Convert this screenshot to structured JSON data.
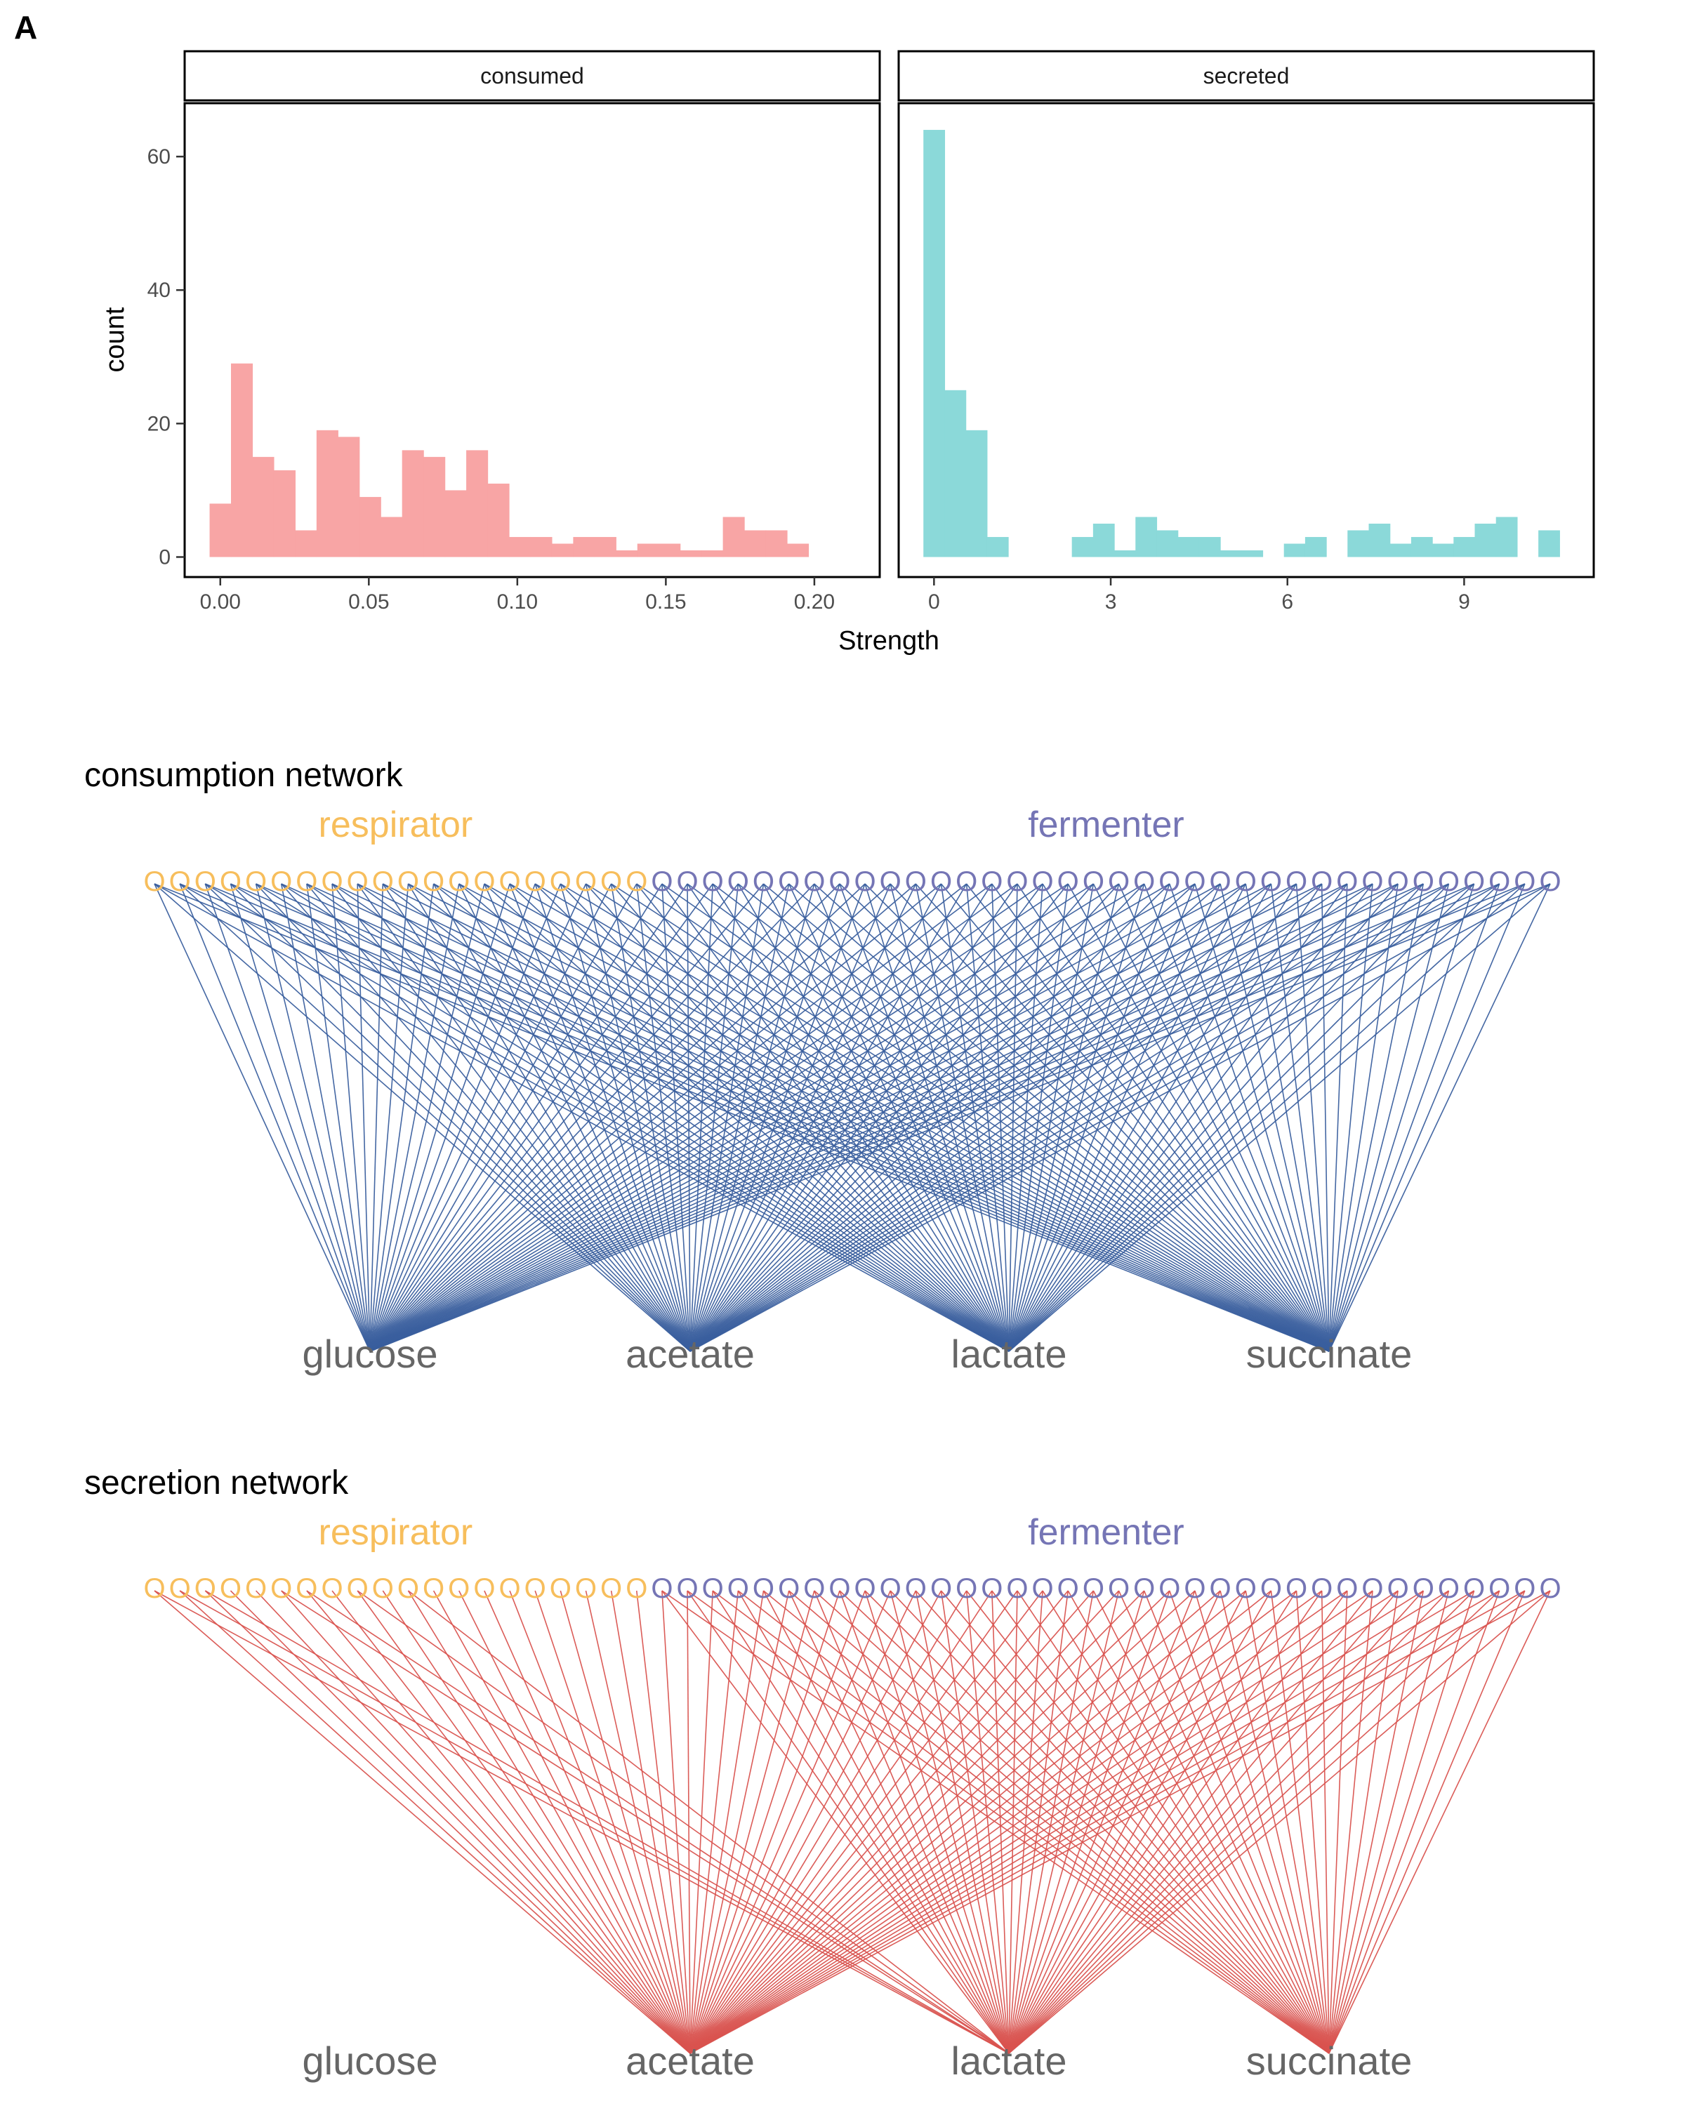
{
  "panel_label": "A",
  "chart_data": [
    {
      "type": "bar",
      "chart_kind": "histogram",
      "facet": "consumed",
      "xlabel": "Strength",
      "ylabel": "count",
      "color": "#F8A5A5",
      "xlim": [
        -0.012,
        0.222
      ],
      "ylim": [
        -3,
        68
      ],
      "x_ticks": [
        "0.00",
        "0.05",
        "0.10",
        "0.15",
        "0.20"
      ],
      "x_tick_values": [
        0,
        0.05,
        0.1,
        0.15,
        0.2
      ],
      "y_ticks": [
        "0",
        "20",
        "40",
        "60"
      ],
      "y_tick_values": [
        0,
        20,
        40,
        60
      ],
      "bin_width": 0.0072,
      "bin_start": -0.0036,
      "values": [
        8,
        29,
        15,
        13,
        4,
        19,
        18,
        9,
        6,
        16,
        15,
        10,
        16,
        11,
        3,
        3,
        2,
        3,
        3,
        1,
        2,
        2,
        1,
        1,
        6,
        4,
        4,
        2
      ]
    },
    {
      "type": "bar",
      "chart_kind": "histogram",
      "facet": "secreted",
      "xlabel": "Strength",
      "ylabel": "count",
      "color": "#8BD9D9",
      "xlim": [
        -0.6,
        11.2
      ],
      "ylim": [
        -3,
        68
      ],
      "x_ticks": [
        "0",
        "3",
        "6",
        "9"
      ],
      "x_tick_values": [
        0,
        3,
        6,
        9
      ],
      "y_ticks": [
        "0",
        "20",
        "40",
        "60"
      ],
      "y_tick_values": [
        0,
        20,
        40,
        60
      ],
      "bin_width": 0.36,
      "bin_start": -0.18,
      "values": [
        64,
        25,
        19,
        3,
        0,
        0,
        0,
        3,
        5,
        1,
        6,
        4,
        3,
        3,
        1,
        1,
        0,
        2,
        3,
        0,
        4,
        5,
        2,
        3,
        2,
        3,
        5,
        6,
        0,
        4
      ]
    },
    {
      "type": "network",
      "title": "consumption network",
      "edge_color": "#3A5F9E",
      "groups": [
        {
          "name": "respirator",
          "color": "#F7BE5C",
          "count": 20
        },
        {
          "name": "fermenter",
          "color": "#7575B5",
          "count": 36
        }
      ],
      "node_glyph": "O",
      "metabolites": [
        "glucose",
        "acetate",
        "lactate",
        "succinate"
      ],
      "edges": {
        "respirator": {
          "glucose": "all",
          "acetate": "all",
          "lactate": "all",
          "succinate": "all"
        },
        "fermenter": {
          "glucose": "all",
          "acetate": "all",
          "lactate": "all",
          "succinate": "all"
        }
      }
    },
    {
      "type": "network",
      "title": "secretion network",
      "edge_color": "#D9534F",
      "groups": [
        {
          "name": "respirator",
          "color": "#F7BE5C",
          "count": 20
        },
        {
          "name": "fermenter",
          "color": "#7575B5",
          "count": 36
        }
      ],
      "node_glyph": "O",
      "metabolites": [
        "glucose",
        "acetate",
        "lactate",
        "succinate"
      ],
      "edges": {
        "respirator": {
          "acetate": [
            0,
            1,
            2,
            3,
            4,
            5,
            6,
            7,
            8,
            9,
            10,
            11,
            12,
            13,
            14,
            15,
            16,
            17,
            18,
            19
          ],
          "lactate": [
            0,
            1,
            2,
            5,
            6,
            8,
            10
          ]
        },
        "fermenter": {
          "acetate": "all",
          "lactate": "all",
          "succinate": "all"
        }
      }
    }
  ]
}
